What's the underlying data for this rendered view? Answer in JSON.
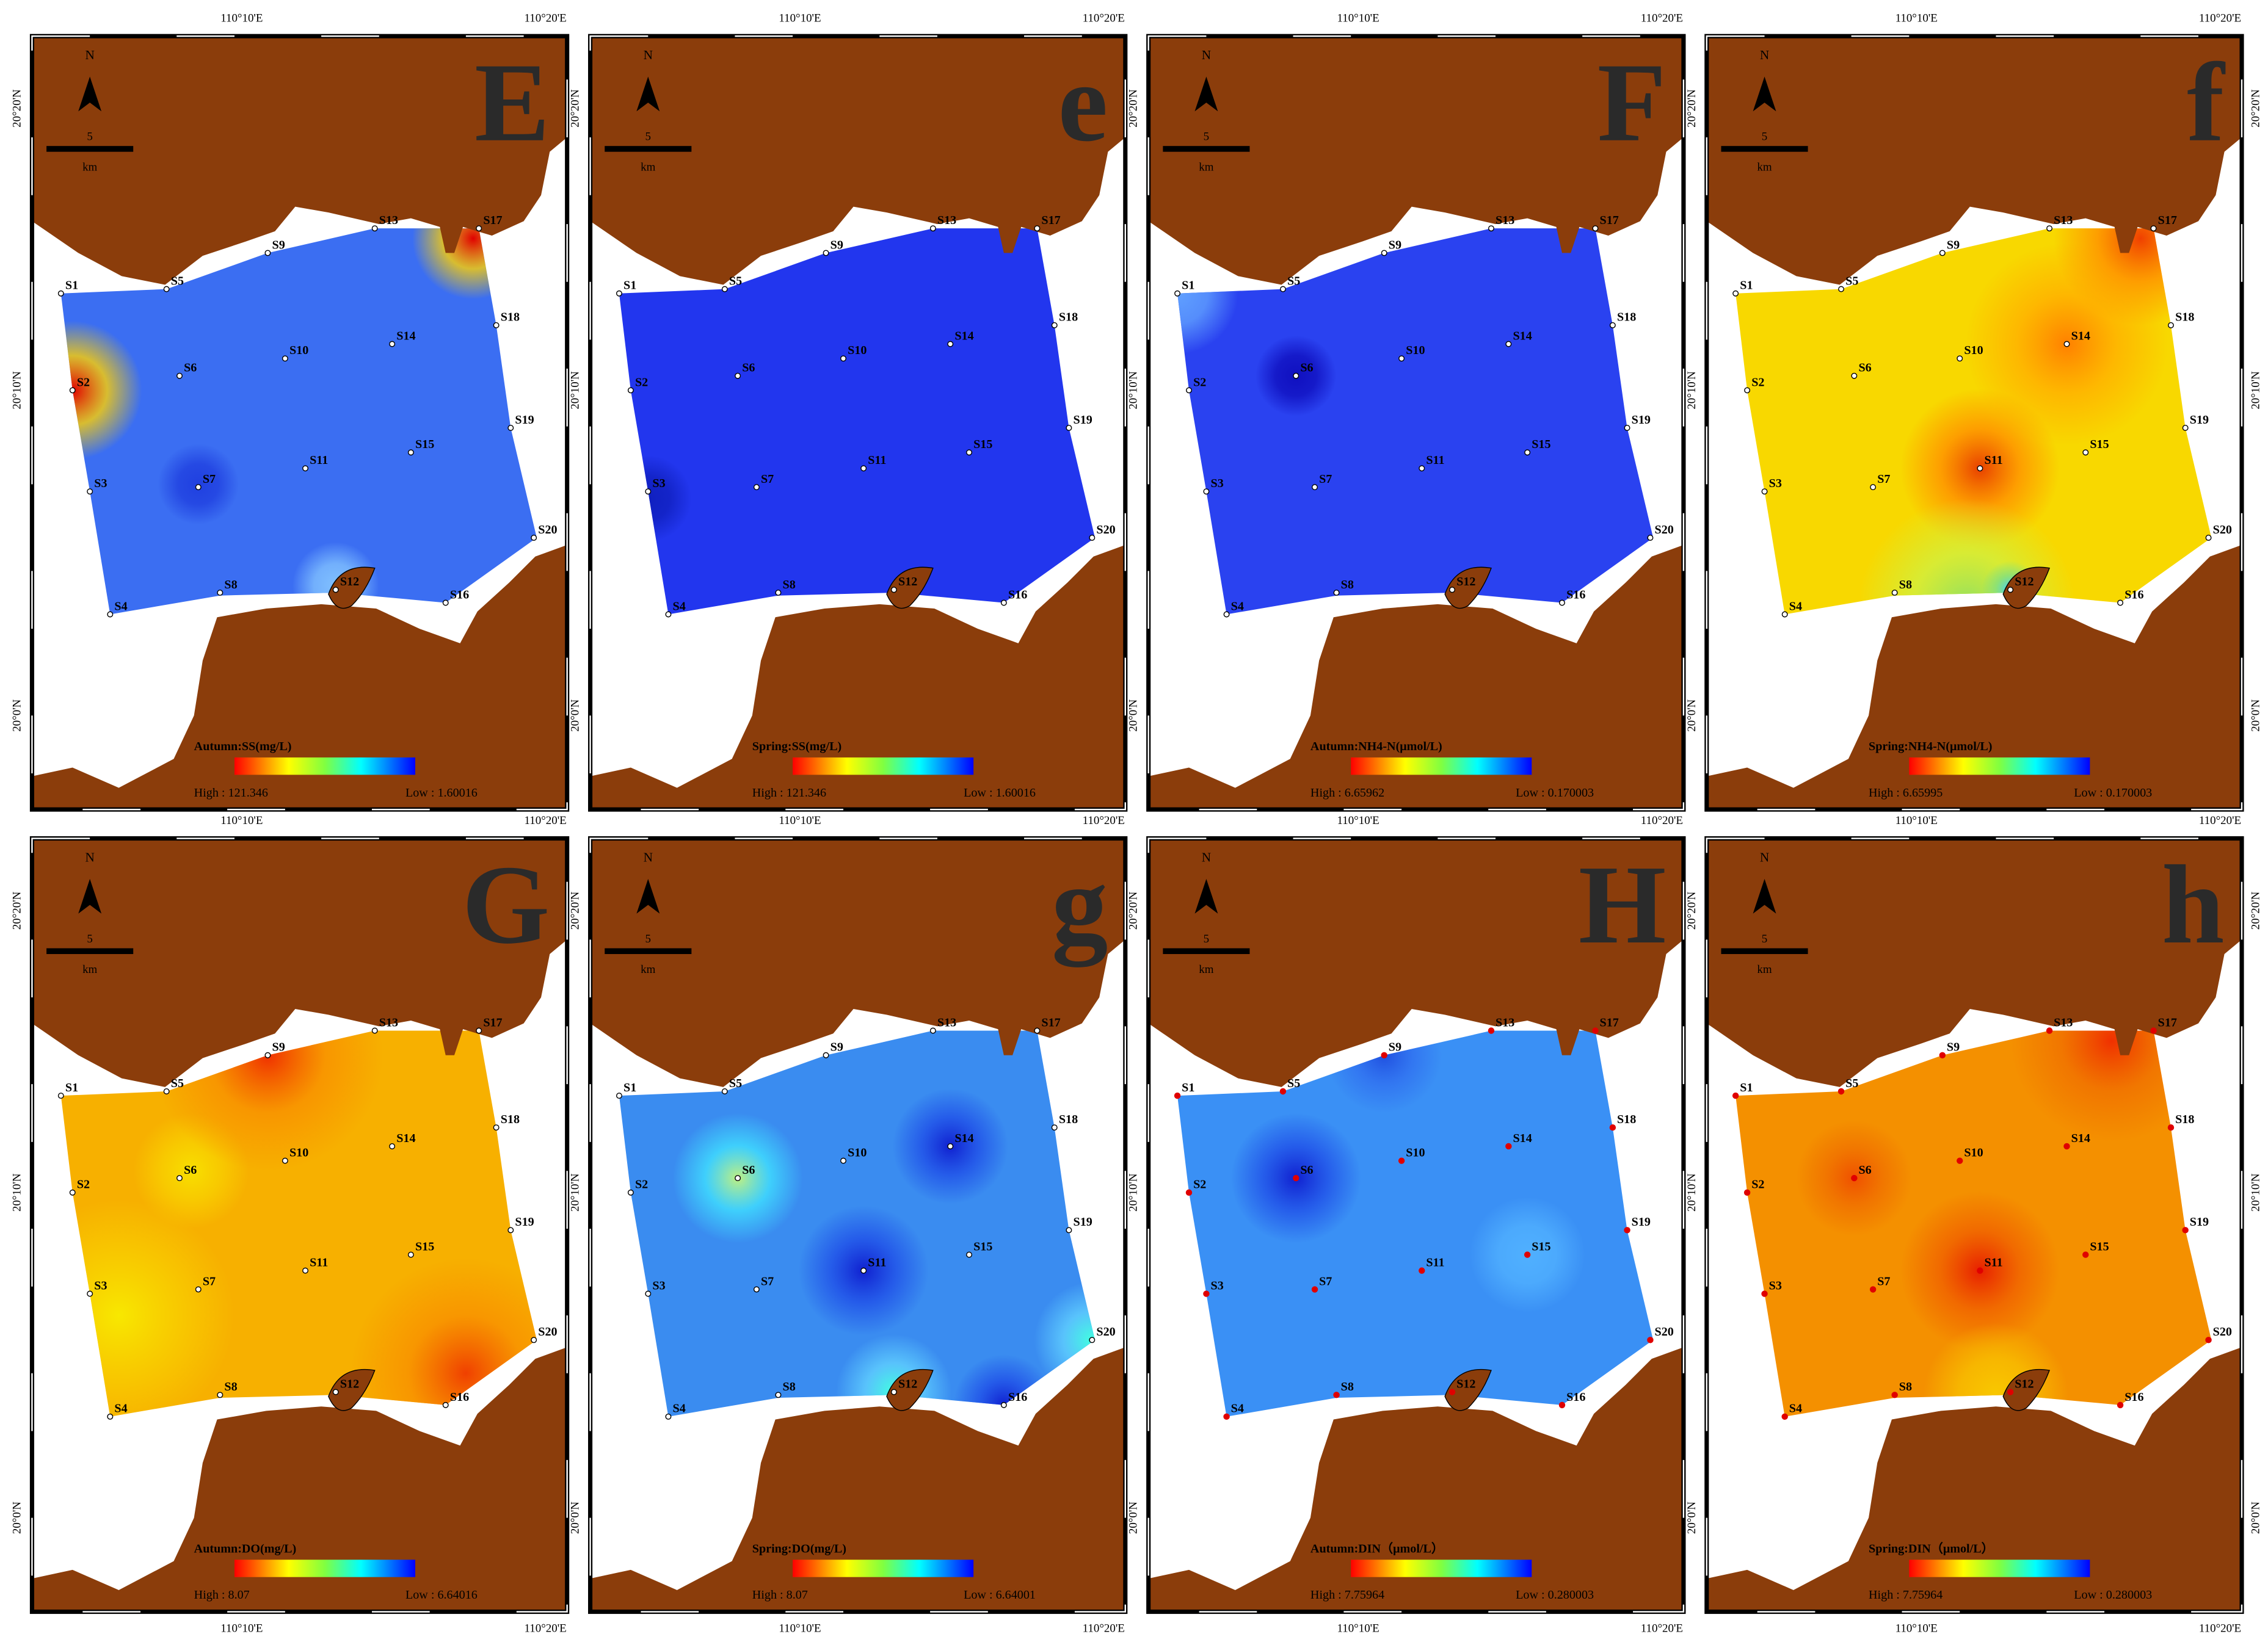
{
  "panels": [
    {
      "letter": "E",
      "legend_title": "Autumn:SS(mg/L)",
      "high": "High : 121.346",
      "low": "Low : 1.60016"
    },
    {
      "letter": "e",
      "legend_title": "Spring:SS(mg/L)",
      "high": "High : 121.346",
      "low": "Low : 1.60016"
    },
    {
      "letter": "F",
      "legend_title": "Autumn:NH4-N(μmol/L)",
      "high": "High : 6.65962",
      "low": "Low : 0.170003"
    },
    {
      "letter": "f",
      "legend_title": "Spring:NH4-N(μmol/L)",
      "high": "High : 6.65995",
      "low": "Low : 0.170003"
    },
    {
      "letter": "G",
      "legend_title": "Autumn:DO(mg/L)",
      "high": "High : 8.07",
      "low": "Low : 6.64016"
    },
    {
      "letter": "g",
      "legend_title": "Spring:DO(mg/L)",
      "high": "High : 8.07",
      "low": "Low : 6.64001"
    },
    {
      "letter": "H",
      "legend_title": "Autumn:DIN（μmol/L）",
      "high": "High : 7.75964",
      "low": "Low : 0.280003"
    },
    {
      "letter": "h",
      "legend_title": "Spring:DIN（μmol/L）",
      "high": "High : 7.75964",
      "low": "Low : 0.280003"
    }
  ],
  "stations": [
    "S1",
    "S2",
    "S3",
    "S4",
    "S5",
    "S6",
    "S7",
    "S8",
    "S9",
    "S10",
    "S11",
    "S12",
    "S13",
    "S14",
    "S15",
    "S16",
    "S17",
    "S18",
    "S19",
    "S20"
  ],
  "lon_labels": [
    "110°10'E",
    "110°20'E"
  ],
  "lat_labels": [
    "20°20'N",
    "20°10'N",
    "20°0'N"
  ],
  "north": "N",
  "scale_value": "5",
  "scale_unit": "km"
}
